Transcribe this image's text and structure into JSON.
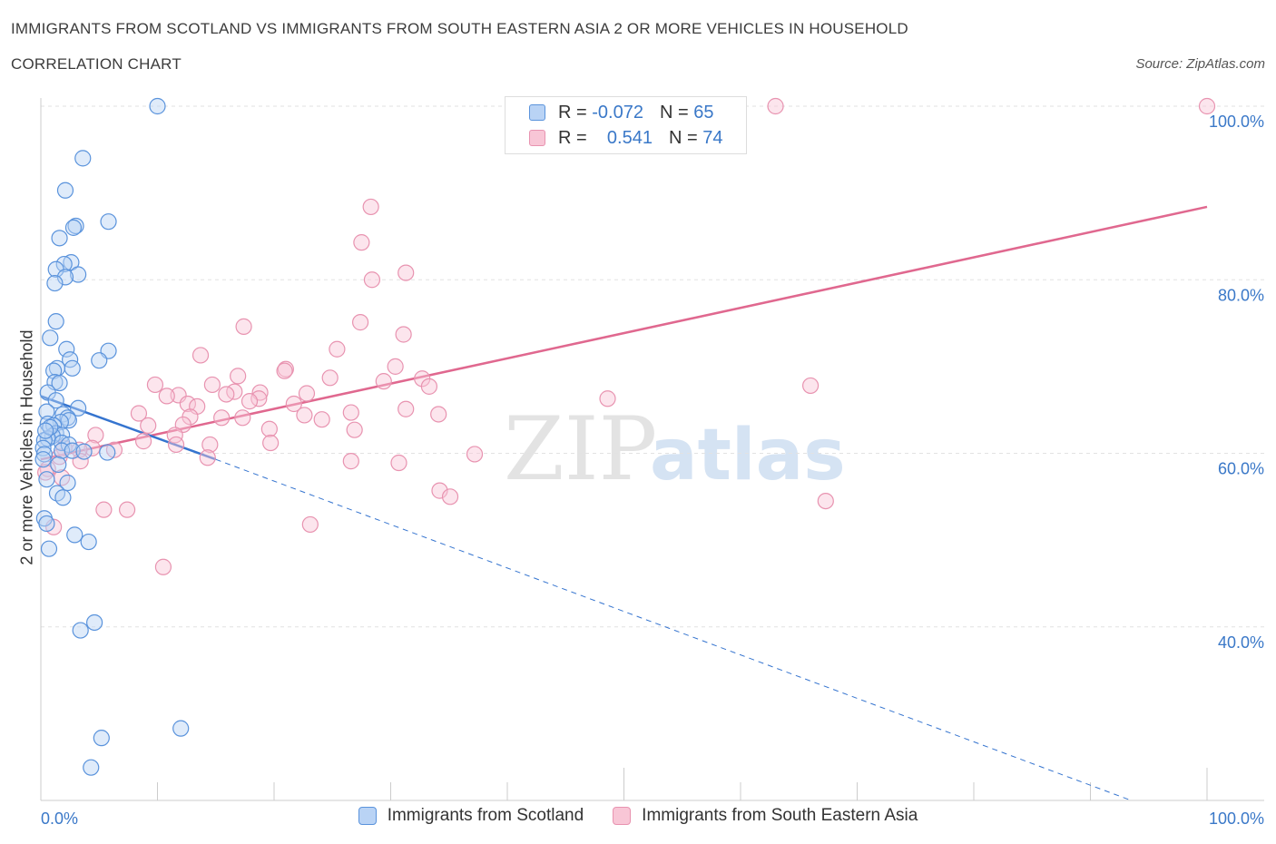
{
  "title": "IMMIGRANTS FROM SCOTLAND VS IMMIGRANTS FROM SOUTH EASTERN ASIA 2 OR MORE VEHICLES IN HOUSEHOLD",
  "subtitle": "CORRELATION CHART",
  "source": "Source: ZipAtlas.com",
  "watermark": {
    "zip": "ZIP",
    "atlas": "atlas"
  },
  "colors": {
    "blue_fill": "#b9d3f5",
    "blue_stroke": "#5a93dc",
    "blue_line": "#3574cf",
    "pink_fill": "#f8c6d6",
    "pink_stroke": "#e893b0",
    "pink_line": "#e0688f",
    "tick_label": "#3a78c8",
    "grid": "#e2e2e2"
  },
  "legend_top": {
    "rows": [
      {
        "r_label": "R =",
        "r_value": "-0.072",
        "n_label": "N =",
        "n_value": "65"
      },
      {
        "r_label": "R =",
        "r_value": "0.541",
        "n_label": "N =",
        "n_value": "74"
      }
    ]
  },
  "legend_bottom": [
    "Immigrants from Scotland",
    "Immigrants from South Eastern Asia"
  ],
  "chart_data": {
    "type": "scatter",
    "xlabel": "",
    "ylabel": "2 or more Vehicles in Household",
    "xlim": [
      0,
      100
    ],
    "ylim": [
      20,
      100
    ],
    "x_tick_labels": [
      "0.0%",
      "100.0%"
    ],
    "y_tick_values": [
      40,
      60,
      80,
      100
    ],
    "y_tick_labels": [
      "40.0%",
      "60.0%",
      "80.0%",
      "100.0%"
    ],
    "grid": true,
    "series": [
      {
        "name": "Immigrants from Scotland",
        "color": "#5a93dc",
        "points": [
          [
            10,
            100
          ],
          [
            3.6,
            94
          ],
          [
            2.1,
            90.3
          ],
          [
            5.8,
            86.7
          ],
          [
            3,
            86.2
          ],
          [
            2.8,
            86
          ],
          [
            1.6,
            84.8
          ],
          [
            2.6,
            82
          ],
          [
            2,
            81.8
          ],
          [
            1.3,
            81.2
          ],
          [
            3.2,
            80.6
          ],
          [
            2.1,
            80.3
          ],
          [
            1.2,
            79.6
          ],
          [
            1.3,
            75.2
          ],
          [
            0.8,
            73.3
          ],
          [
            2.2,
            72
          ],
          [
            5.8,
            71.8
          ],
          [
            2.5,
            70.8
          ],
          [
            5,
            70.7
          ],
          [
            2.7,
            69.8
          ],
          [
            1.4,
            69.8
          ],
          [
            1.1,
            69.5
          ],
          [
            1.2,
            68.2
          ],
          [
            1.6,
            68.1
          ],
          [
            0.6,
            67
          ],
          [
            1.3,
            66.1
          ],
          [
            3.2,
            65.2
          ],
          [
            0.5,
            64.8
          ],
          [
            1.9,
            64.5
          ],
          [
            2.3,
            64.1
          ],
          [
            2.4,
            63.8
          ],
          [
            1.7,
            63.6
          ],
          [
            0.6,
            63.4
          ],
          [
            1.1,
            63.2
          ],
          [
            1.3,
            62.3
          ],
          [
            1.8,
            62.1
          ],
          [
            1,
            62
          ],
          [
            0.6,
            61.7
          ],
          [
            0.3,
            61.5
          ],
          [
            1.8,
            61.2
          ],
          [
            2.4,
            61
          ],
          [
            0.2,
            60.6
          ],
          [
            1.8,
            60.3
          ],
          [
            2.7,
            60.3
          ],
          [
            5.7,
            60.1
          ],
          [
            0.3,
            59.9
          ],
          [
            0.2,
            59.3
          ],
          [
            2.3,
            56.6
          ],
          [
            1.4,
            55.4
          ],
          [
            1.9,
            54.9
          ],
          [
            0.3,
            52.5
          ],
          [
            0.5,
            51.9
          ],
          [
            2.9,
            50.6
          ],
          [
            4.1,
            49.8
          ],
          [
            0.7,
            49
          ],
          [
            4.6,
            40.5
          ],
          [
            3.4,
            39.6
          ],
          [
            12,
            28.3
          ],
          [
            5.2,
            27.2
          ],
          [
            4.3,
            23.8
          ],
          [
            0.8,
            63
          ],
          [
            1.5,
            58.7
          ],
          [
            0.5,
            57
          ],
          [
            3.7,
            60.2
          ],
          [
            0.4,
            62.6
          ]
        ]
      },
      {
        "name": "Immigrants from South Eastern Asia",
        "color": "#e893b0",
        "points": [
          [
            63,
            100
          ],
          [
            100,
            100
          ],
          [
            28.3,
            88.4
          ],
          [
            27.5,
            84.3
          ],
          [
            31.3,
            80.8
          ],
          [
            28.4,
            80
          ],
          [
            17.4,
            74.6
          ],
          [
            27.4,
            75.1
          ],
          [
            31.1,
            73.7
          ],
          [
            25.4,
            72
          ],
          [
            13.7,
            71.3
          ],
          [
            30.4,
            70
          ],
          [
            21,
            69.7
          ],
          [
            20.9,
            69.5
          ],
          [
            16.9,
            68.9
          ],
          [
            24.8,
            68.7
          ],
          [
            32.7,
            68.6
          ],
          [
            29.4,
            68.3
          ],
          [
            9.8,
            67.9
          ],
          [
            14.7,
            67.9
          ],
          [
            33.3,
            67.7
          ],
          [
            66,
            67.8
          ],
          [
            16.6,
            67.1
          ],
          [
            18.8,
            67
          ],
          [
            15.9,
            66.8
          ],
          [
            22.8,
            66.9
          ],
          [
            11.8,
            66.7
          ],
          [
            10.8,
            66.6
          ],
          [
            18.7,
            66.3
          ],
          [
            48.6,
            66.3
          ],
          [
            17.9,
            66
          ],
          [
            12.6,
            65.7
          ],
          [
            21.7,
            65.7
          ],
          [
            13.4,
            65.4
          ],
          [
            31.3,
            65.1
          ],
          [
            26.6,
            64.7
          ],
          [
            8.4,
            64.6
          ],
          [
            22.6,
            64.4
          ],
          [
            34.1,
            64.5
          ],
          [
            12.8,
            64.2
          ],
          [
            15.5,
            64.1
          ],
          [
            17.3,
            64.1
          ],
          [
            24.1,
            63.9
          ],
          [
            12.2,
            63.3
          ],
          [
            9.2,
            63.2
          ],
          [
            19.6,
            62.8
          ],
          [
            26.9,
            62.7
          ],
          [
            4.7,
            62.1
          ],
          [
            11.5,
            62.1
          ],
          [
            8.8,
            61.4
          ],
          [
            11.6,
            61
          ],
          [
            19.7,
            61.2
          ],
          [
            14.5,
            61
          ],
          [
            2,
            60.6
          ],
          [
            4.4,
            60.6
          ],
          [
            6.3,
            60.4
          ],
          [
            3.3,
            60.4
          ],
          [
            37.2,
            59.9
          ],
          [
            1.6,
            59.6
          ],
          [
            3.4,
            59.1
          ],
          [
            26.6,
            59.1
          ],
          [
            30.7,
            58.9
          ],
          [
            14.3,
            59.5
          ],
          [
            0.6,
            58.2
          ],
          [
            1.8,
            57.2
          ],
          [
            34.2,
            55.7
          ],
          [
            35.1,
            55
          ],
          [
            67.3,
            54.5
          ],
          [
            5.4,
            53.5
          ],
          [
            7.4,
            53.5
          ],
          [
            23.1,
            51.8
          ],
          [
            1.1,
            51.5
          ],
          [
            10.5,
            46.9
          ],
          [
            0.4,
            57.8
          ]
        ]
      }
    ],
    "trendlines": [
      {
        "series": "Immigrants from Scotland",
        "solid": [
          [
            0,
            66.6
          ],
          [
            15,
            59.3
          ]
        ],
        "dashed": [
          [
            15,
            59.3
          ],
          [
            93.5,
            20
          ]
        ]
      },
      {
        "series": "Immigrants from South Eastern Asia",
        "solid": [
          [
            0,
            59.3
          ],
          [
            100,
            88.4
          ]
        ]
      }
    ]
  }
}
